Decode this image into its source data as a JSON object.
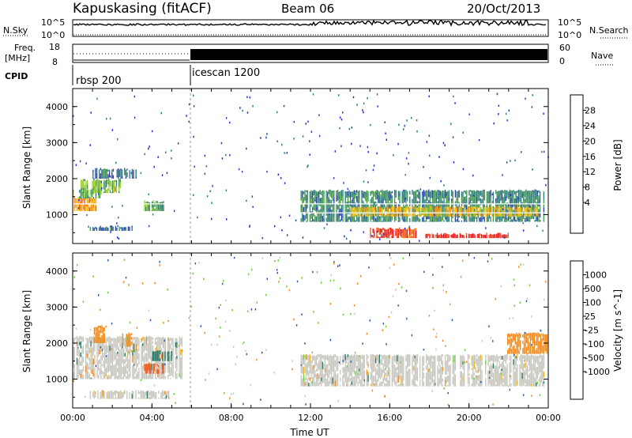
{
  "header": {
    "station": "Kapuskasing (fitACF)",
    "beam": "Beam 06",
    "date": "20/Oct/2013"
  },
  "strips": {
    "nsky_label": "N.Sky",
    "nsky_ticks": [
      "10^5",
      "10^0"
    ],
    "nsearch_label": "N.Search",
    "nsearch_ticks": [
      "10^5",
      "10^0"
    ],
    "freq_label_1": "Freq.",
    "freq_label_2": "[MHz]",
    "freq_ticks": [
      "18",
      "8"
    ],
    "nave_label": "Nave",
    "nave_ticks": [
      "60",
      "0"
    ],
    "cpid_label": "CPID",
    "cpid_modes": [
      {
        "name": "rbsp 200",
        "start_hour": 0
      },
      {
        "name": "icescan 1200",
        "start_hour": 6
      }
    ]
  },
  "colorbars": {
    "power": {
      "label": "Power [dB]",
      "ticks": [
        "28",
        "24",
        "20",
        "16",
        "12",
        "8",
        "4"
      ],
      "colors": [
        "#e8141e",
        "#ee5a1e",
        "#f2921c",
        "#f5c21a",
        "#9acd32",
        "#4a9e4a",
        "#2f7f7f",
        "#2b4aa8",
        "#1f2fe0"
      ]
    },
    "velocity": {
      "label": "Velocity [m s^-1]",
      "ticks": [
        "1000",
        "500",
        "100",
        "25",
        "-25",
        "-100",
        "-500",
        "-1000"
      ],
      "colors": [
        "#2030c0",
        "#2a5aa8",
        "#2f7a6a",
        "#4aa84a",
        "#6fd03a",
        "#c8c8c0",
        "#f5b41e",
        "#f28c1e",
        "#ee5a1e",
        "#e8141e"
      ]
    }
  },
  "chart_data": [
    {
      "type": "heatmap",
      "title": "Power",
      "ylabel": "Slant Range [km]",
      "xlabel": "Time UT",
      "xticks": [
        "00:00",
        "04:00",
        "08:00",
        "12:00",
        "16:00",
        "20:00",
        "00:00"
      ],
      "yticks": [
        "1000",
        "2000",
        "3000",
        "4000"
      ],
      "ylim": [
        200,
        4500
      ],
      "xlim_hours": [
        0,
        24
      ],
      "regions": [
        {
          "t": [
            0.0,
            1.2
          ],
          "r": [
            1100,
            1500
          ],
          "value": 20
        },
        {
          "t": [
            0.0,
            1.5
          ],
          "r": [
            1450,
            1750
          ],
          "value": 10
        },
        {
          "t": [
            0.4,
            2.4
          ],
          "r": [
            1600,
            2000
          ],
          "value": 12
        },
        {
          "t": [
            1.0,
            3.2
          ],
          "r": [
            2000,
            2300
          ],
          "value": 6
        },
        {
          "t": [
            0.8,
            3.0
          ],
          "r": [
            550,
            700
          ],
          "value": 6
        },
        {
          "t": [
            3.6,
            4.6
          ],
          "r": [
            1100,
            1400
          ],
          "value": 10
        },
        {
          "t": [
            11.5,
            23.8
          ],
          "r": [
            800,
            1700
          ],
          "value": 8
        },
        {
          "t": [
            14.0,
            23.5
          ],
          "r": [
            950,
            1250
          ],
          "value": 18
        },
        {
          "t": [
            15.0,
            17.3
          ],
          "r": [
            350,
            650
          ],
          "value": 26
        },
        {
          "t": [
            17.8,
            22.0
          ],
          "r": [
            350,
            500
          ],
          "value": 28
        }
      ]
    },
    {
      "type": "heatmap",
      "title": "Velocity",
      "ylabel": "Slant Range [km]",
      "xlabel": "Time UT",
      "xticks": [
        "00:00",
        "04:00",
        "08:00",
        "12:00",
        "16:00",
        "20:00",
        "00:00"
      ],
      "yticks": [
        "1000",
        "2000",
        "3000",
        "4000"
      ],
      "ylim": [
        200,
        4500
      ],
      "xlim_hours": [
        0,
        24
      ],
      "regions": [
        {
          "t": [
            0.0,
            5.5
          ],
          "r": [
            1000,
            2200
          ],
          "value": 0
        },
        {
          "t": [
            0.8,
            5.0
          ],
          "r": [
            450,
            700
          ],
          "value": 0
        },
        {
          "t": [
            1.0,
            1.6
          ],
          "r": [
            2000,
            2500
          ],
          "value": -300
        },
        {
          "t": [
            2.5,
            3.0
          ],
          "r": [
            1900,
            2300
          ],
          "value": -200
        },
        {
          "t": [
            3.6,
            4.6
          ],
          "r": [
            1150,
            1450
          ],
          "value": -600
        },
        {
          "t": [
            4.0,
            5.0
          ],
          "r": [
            1500,
            1800
          ],
          "value": 300
        },
        {
          "t": [
            11.5,
            23.8
          ],
          "r": [
            800,
            1700
          ],
          "value": 0
        },
        {
          "t": [
            21.8,
            24.0
          ],
          "r": [
            1700,
            2300
          ],
          "value": -200
        }
      ]
    }
  ]
}
